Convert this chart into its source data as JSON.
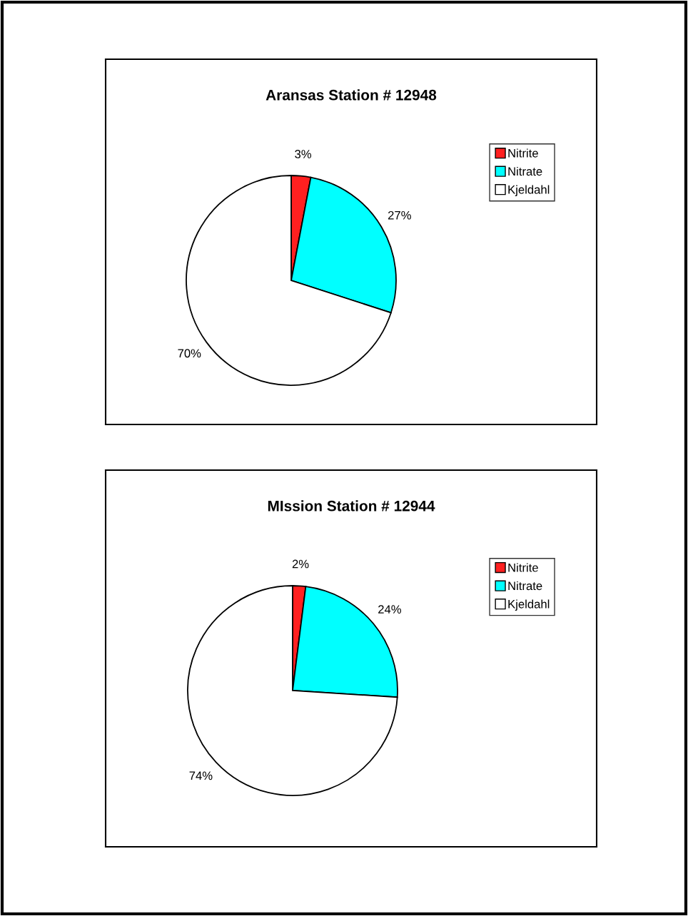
{
  "chart_data": [
    {
      "type": "pie",
      "title": "Aransas Station # 12948",
      "categories": [
        "Nitrite",
        "Nitrate",
        "Kjeldahl"
      ],
      "values": [
        3,
        27,
        70
      ],
      "colors": [
        "#ff2020",
        "#00ffff",
        "#ffffff"
      ],
      "value_labels": [
        "3%",
        "27%",
        "70%"
      ],
      "legend": "right"
    },
    {
      "type": "pie",
      "title": "MIssion Station # 12944",
      "categories": [
        "Nitrite",
        "Nitrate",
        "Kjeldahl"
      ],
      "values": [
        2,
        24,
        74
      ],
      "colors": [
        "#ff2020",
        "#00ffff",
        "#ffffff"
      ],
      "value_labels": [
        "2%",
        "24%",
        "74%"
      ],
      "legend": "right"
    }
  ]
}
